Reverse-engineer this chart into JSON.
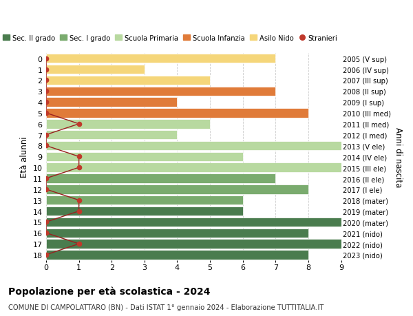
{
  "ages": [
    18,
    17,
    16,
    15,
    14,
    13,
    12,
    11,
    10,
    9,
    8,
    7,
    6,
    5,
    4,
    3,
    2,
    1,
    0
  ],
  "years": [
    "2005 (V sup)",
    "2006 (IV sup)",
    "2007 (III sup)",
    "2008 (II sup)",
    "2009 (I sup)",
    "2010 (III med)",
    "2011 (II med)",
    "2012 (I med)",
    "2013 (V ele)",
    "2014 (IV ele)",
    "2015 (III ele)",
    "2016 (II ele)",
    "2017 (I ele)",
    "2018 (mater)",
    "2019 (mater)",
    "2020 (mater)",
    "2021 (nido)",
    "2022 (nido)",
    "2023 (nido)"
  ],
  "bar_values": [
    8,
    9,
    8,
    9,
    6,
    6,
    8,
    7,
    9,
    6,
    9,
    4,
    5,
    8,
    4,
    7,
    5,
    3,
    7
  ],
  "bar_colors": [
    "#4a7c4e",
    "#4a7c4e",
    "#4a7c4e",
    "#4a7c4e",
    "#4a7c4e",
    "#7aab6e",
    "#7aab6e",
    "#7aab6e",
    "#b8d9a0",
    "#b8d9a0",
    "#b8d9a0",
    "#b8d9a0",
    "#b8d9a0",
    "#e07b39",
    "#e07b39",
    "#e07b39",
    "#f5d67a",
    "#f5d67a",
    "#f5d67a"
  ],
  "stranieri_values": [
    0,
    1,
    0,
    0,
    1,
    1,
    0,
    0,
    1,
    1,
    0,
    0,
    1,
    0,
    0,
    0,
    0,
    0,
    0
  ],
  "legend_labels": [
    "Sec. II grado",
    "Sec. I grado",
    "Scuola Primaria",
    "Scuola Infanzia",
    "Asilo Nido",
    "Stranieri"
  ],
  "legend_colors": [
    "#4a7c4e",
    "#7aab6e",
    "#b8d9a0",
    "#e07b39",
    "#f5d67a",
    "#c0392b"
  ],
  "ylabel_text": "Età alunni",
  "right_ylabel": "Anni di nascita",
  "title": "Popolazione per età scolastica - 2024",
  "subtitle": "COMUNE DI CAMPOLATTARO (BN) - Dati ISTAT 1° gennaio 2024 - Elaborazione TUTTITALIA.IT",
  "xlim": [
    0,
    9
  ],
  "stranieri_color": "#c0392b",
  "stranieri_line_color": "#9b2020",
  "grid_color": "#cccccc"
}
